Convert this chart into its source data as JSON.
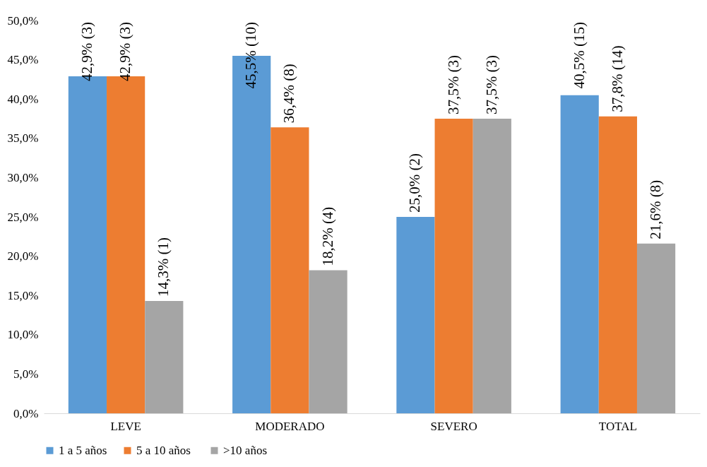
{
  "chart_data": {
    "type": "bar",
    "categories": [
      "LEVE",
      "MODERADO",
      "SEVERO",
      "TOTAL"
    ],
    "series": [
      {
        "name": "1 a 5 años",
        "color": "#5b9bd5",
        "values": [
          42.9,
          45.5,
          25.0,
          40.5
        ],
        "value_labels": [
          "42,9% (3)",
          "45,5% (10)",
          "25,0% (2)",
          "40,5% (15)"
        ]
      },
      {
        "name": "5 a  10 años",
        "color": "#ed7d31",
        "values": [
          42.9,
          36.4,
          37.5,
          37.8
        ],
        "value_labels": [
          "42,9% (3)",
          "36,4% (8)",
          "37,5% (3)",
          "37,8% (14)"
        ]
      },
      {
        "name": ">10 años",
        "color": "#a5a5a5",
        "values": [
          14.3,
          18.2,
          37.5,
          21.6
        ],
        "value_labels": [
          "14,3% (1)",
          "18,2% (4)",
          "37,5% (3)",
          "21,6% (8)"
        ]
      }
    ],
    "ylim": [
      0,
      50
    ],
    "yticks": [
      {
        "value": 0,
        "label": "0,0%"
      },
      {
        "value": 5,
        "label": "5,0%"
      },
      {
        "value": 10,
        "label": "10,0%"
      },
      {
        "value": 15,
        "label": "15,0%"
      },
      {
        "value": 20,
        "label": "20,0%"
      },
      {
        "value": 25,
        "label": "25,0%"
      },
      {
        "value": 30,
        "label": "30,0%"
      },
      {
        "value": 35,
        "label": "35,0%"
      },
      {
        "value": 40,
        "label": "40,0%"
      },
      {
        "value": 45,
        "label": "45,0%"
      },
      {
        "value": 50,
        "label": "50,0%"
      }
    ],
    "grid": false,
    "legend": "bottom"
  }
}
